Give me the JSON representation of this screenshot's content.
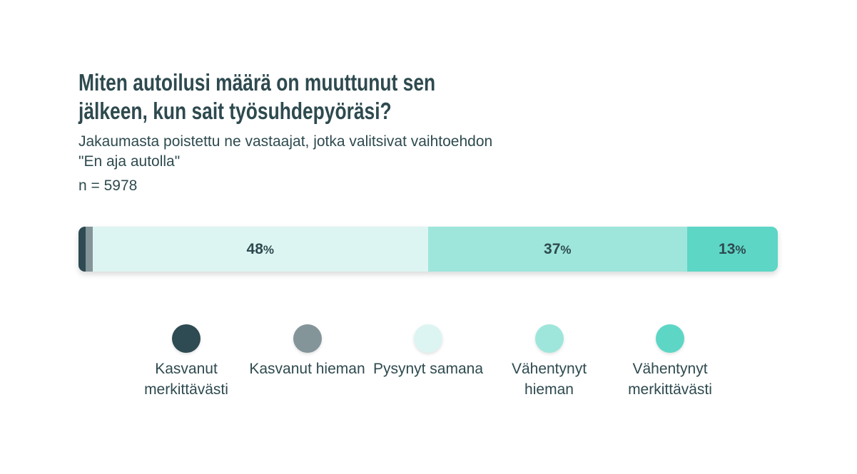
{
  "chart_data": {
    "type": "bar",
    "orientation": "horizontal",
    "stacked": true,
    "title": "Miten autoilusi määrä on muuttunut sen jälkeen, kun sait työsuhdepyöräsi?",
    "subtitle": "Jakaumasta poistettu ne vastaajat, jotka valitsivat vaihtoehdon \"En aja autolla\"",
    "note": "n = 5978",
    "xlim": [
      0,
      100
    ],
    "legend": "bottom",
    "series": [
      {
        "name": "Kasvanut merkittävästi",
        "color": "#2e4a52",
        "values": [
          1
        ]
      },
      {
        "name": "Kasvanut hieman",
        "color": "#84959a",
        "values": [
          1
        ]
      },
      {
        "name": "Pysynyt samana",
        "color": "#ddf5f2",
        "values": [
          48
        ],
        "value_labels": [
          "48%"
        ]
      },
      {
        "name": "Vähentynyt hieman",
        "color": "#9ee6db",
        "values": [
          37
        ],
        "value_labels": [
          "37%"
        ]
      },
      {
        "name": "Vähentynyt merkittävästi",
        "color": "#5dd6c6",
        "values": [
          13
        ],
        "value_labels": [
          "13%"
        ]
      }
    ]
  }
}
